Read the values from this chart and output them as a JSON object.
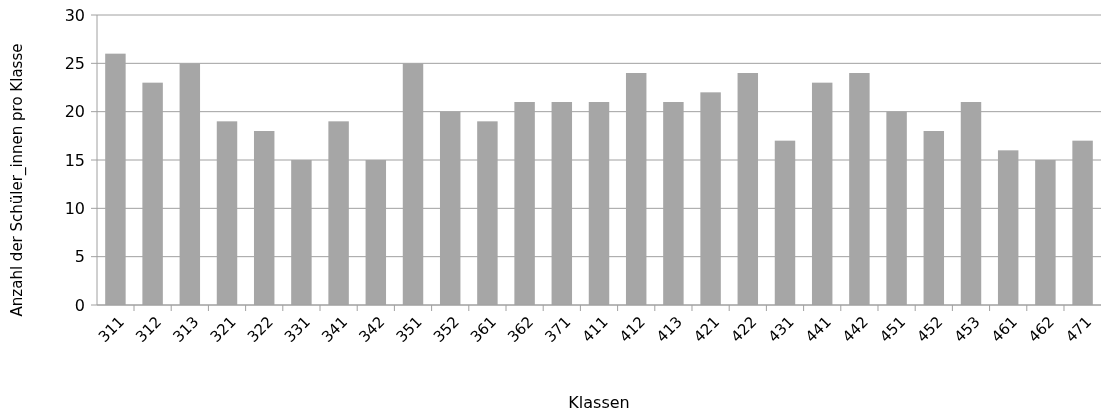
{
  "chart_data": {
    "type": "bar",
    "xlabel": "Klassen",
    "ylabel": "Anzahl der Schüler_innen pro Klasse",
    "categories": [
      "311",
      "312",
      "313",
      "321",
      "322",
      "331",
      "341",
      "342",
      "351",
      "352",
      "361",
      "362",
      "371",
      "411",
      "412",
      "413",
      "421",
      "422",
      "431",
      "441",
      "442",
      "451",
      "452",
      "453",
      "461",
      "462",
      "471"
    ],
    "values": [
      26,
      23,
      25,
      19,
      18,
      15,
      19,
      15,
      25,
      20,
      19,
      21,
      21,
      21,
      24,
      21,
      22,
      24,
      17,
      23,
      24,
      20,
      18,
      21,
      16,
      15,
      17
    ],
    "color": "#a6a6a6",
    "ylim": [
      0,
      30
    ],
    "yticks": [
      0,
      5,
      10,
      15,
      20,
      25,
      30
    ],
    "grid": "y"
  }
}
